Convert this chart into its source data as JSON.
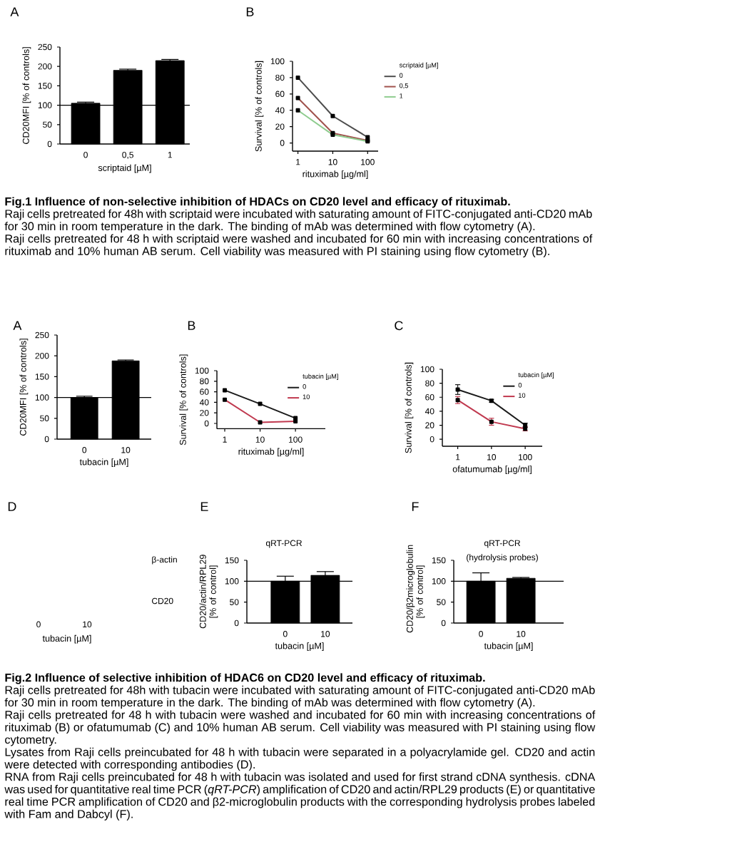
{
  "chart_data": [
    {
      "type": "bar",
      "annotations": [
        "A"
      ],
      "categories": [
        "0",
        "0,5",
        "1"
      ],
      "values": [
        105,
        190,
        215
      ],
      "errors": [
        [
          105,
          108
        ],
        [
          190,
          193
        ],
        [
          215,
          218
        ]
      ],
      "color": "#000000",
      "xlabel": "scriptaid [µM]",
      "ylabel": "CD20MFI [% of controls]",
      "ylim": [
        0,
        250
      ],
      "yticks": [
        0,
        50,
        100,
        150,
        200,
        250
      ],
      "ref_lines": [
        {
          "axis": "y",
          "value": 100
        }
      ]
    },
    {
      "type": "line",
      "annotations": [
        "B"
      ],
      "x": [
        1,
        10,
        100
      ],
      "series": [
        {
          "name": "0",
          "color": "#4d4d4d",
          "values": [
            80,
            33,
            7
          ]
        },
        {
          "name": "0,5",
          "color": "#a0524d",
          "values": [
            55,
            12,
            3
          ]
        },
        {
          "name": "1",
          "color": "#8fcc8f",
          "values": [
            40,
            10,
            2
          ]
        }
      ],
      "xlabel": "rituximab [µg/ml]",
      "ylabel": "Survival [% of controls]",
      "legend_title": "scriptaid [µM]",
      "legend": "right",
      "log": "x",
      "xlim": [
        0.7,
        200
      ],
      "xticks": [
        1,
        10,
        100
      ],
      "ylim": [
        -10,
        100
      ],
      "yticks": [
        0,
        20,
        40,
        60,
        80,
        100
      ],
      "marker": "square"
    },
    {
      "type": "other",
      "title": "Fig.1 Influence of non-selective inhibition of HDACs on CD20 level and efficacy of rituximab.",
      "annotations": [
        "Raji cells pretreated for 48h with scriptaid were incubated with saturating amount of FITC-conjugated anti-CD20 mAb for 30 min in room temperature in the dark. The binding of mAb was determined with flow cytometry (A).",
        "Raji cells pretreated for 48 h with scriptaid were washed and incubated for 60 min with increasing concentrations of rituximab and 10% human AB serum. Cell viability was measured with PI staining using flow cytometry (B)."
      ]
    },
    {
      "type": "bar",
      "annotations": [
        "A"
      ],
      "categories": [
        "0",
        "10"
      ],
      "values": [
        100,
        188
      ],
      "errors": [
        [
          100,
          103
        ],
        [
          188,
          190
        ]
      ],
      "color": "#000000",
      "xlabel": "tubacin [µM]",
      "ylabel": "CD20MFI [% of controls]",
      "ylim": [
        0,
        250
      ],
      "yticks": [
        0,
        50,
        100,
        150,
        200,
        250
      ],
      "ref_lines": [
        {
          "axis": "y",
          "value": 100
        }
      ]
    },
    {
      "type": "line",
      "annotations": [
        "B"
      ],
      "x": [
        1,
        10,
        100
      ],
      "series": [
        {
          "name": "0",
          "color": "#1a1a1a",
          "values": [
            63,
            37,
            10
          ]
        },
        {
          "name": "10",
          "color": "#c0394f",
          "values": [
            45,
            2,
            4
          ]
        }
      ],
      "xlabel": "rituximab [µg/ml]",
      "ylabel": "Survival [% of controls]",
      "legend_title": "tubacin [µM]",
      "legend": "top right",
      "log": "x",
      "xlim": [
        0.6,
        700
      ],
      "xticks": [
        1,
        10,
        100
      ],
      "ylim": [
        -10,
        100
      ],
      "yticks": [
        0,
        20,
        40,
        60,
        80,
        100
      ],
      "marker": "square"
    },
    {
      "type": "line",
      "annotations": [
        "C"
      ],
      "x": [
        1,
        10,
        100
      ],
      "series": [
        {
          "name": "0",
          "color": "#1a1a1a",
          "values": [
            71,
            55,
            20
          ],
          "errors": [
            7,
            2,
            3
          ]
        },
        {
          "name": "10",
          "color": "#c0394f",
          "values": [
            56,
            25,
            15
          ],
          "errors": [
            5,
            5,
            3
          ]
        }
      ],
      "xlabel": "ofatumumab [µg/ml]",
      "ylabel": "Survival [% of controls]",
      "legend_title": "tubacin [µM]",
      "legend": "top right",
      "log": "x",
      "xlim": [
        0.35,
        320
      ],
      "xticks": [
        1,
        10,
        100
      ],
      "ylim": [
        -10,
        100
      ],
      "yticks": [
        0,
        20,
        40,
        60,
        80,
        100
      ],
      "marker": "square"
    },
    {
      "type": "other",
      "annotations": [
        "D",
        "β-actin",
        "CD20"
      ],
      "categories": [
        "0",
        "10"
      ],
      "xlabel": "tubacin [µM]"
    },
    {
      "type": "bar",
      "annotations": [
        "E"
      ],
      "title": "qRT-PCR",
      "categories": [
        "0",
        "10"
      ],
      "values": [
        100,
        114
      ],
      "errors": [
        [
          100,
          112
        ],
        [
          114,
          123
        ]
      ],
      "color": "#000000",
      "xlabel": "tubacin [µM]",
      "ylabel": "CD20/actin/RPL29 [% of control]",
      "ylim": [
        0,
        150
      ],
      "yticks": [
        0,
        50,
        100,
        150
      ],
      "ref_lines": [
        {
          "axis": "y",
          "value": 100
        }
      ]
    },
    {
      "type": "bar",
      "annotations": [
        "F"
      ],
      "title": "qRT-PCR",
      "subtitle": "(hydrolysis probes)",
      "categories": [
        "0",
        "10"
      ],
      "values": [
        100,
        107
      ],
      "errors": [
        [
          100,
          120
        ],
        [
          107,
          109
        ]
      ],
      "color": "#000000",
      "xlabel": "tubacin [µM]",
      "ylabel": "CD20/β2microglobulin [% of control]",
      "ylim": [
        0,
        150
      ],
      "yticks": [
        0,
        50,
        100,
        150
      ],
      "ref_lines": [
        {
          "axis": "y",
          "value": 100
        }
      ]
    },
    {
      "type": "other",
      "title": "Fig.2 Influence of selective inhibition of HDAC6 on CD20 level and efficacy of rituximab.",
      "annotations": [
        "Raji cells pretreated for 48h with tubacin were incubated with saturating amount of FITC-conjugated anti-CD20 mAb for 30 min in room temperature in the dark. The binding of mAb was determined with flow cytometry (A).",
        "Raji cells pretreated for 48 h with tubacin were washed and incubated for 60 min with increasing concentrations of rituximab (B) or ofatumumab (C) and 10% human AB serum. Cell viability was measured with PI staining using flow cytometry.",
        "Lysates from Raji cells preincubated for 48 h with tubacin were separated in a polyacrylamide gel. CD20 and actin were detected with corresponding antibodies (D).",
        "RNA from Raji cells preincubated for 48 h with tubacin was isolated and used for first strand cDNA synthesis. cDNA was used for quantitative real time PCR (*qRT-PCR*) amplification of CD20 and actin/RPL29 products (E) or quantitative real time PCR amplification of CD20 and β2-microglobulin products with the corresponding hydrolysis probes labeled with Fam and Dabcyl (F)."
      ]
    }
  ]
}
